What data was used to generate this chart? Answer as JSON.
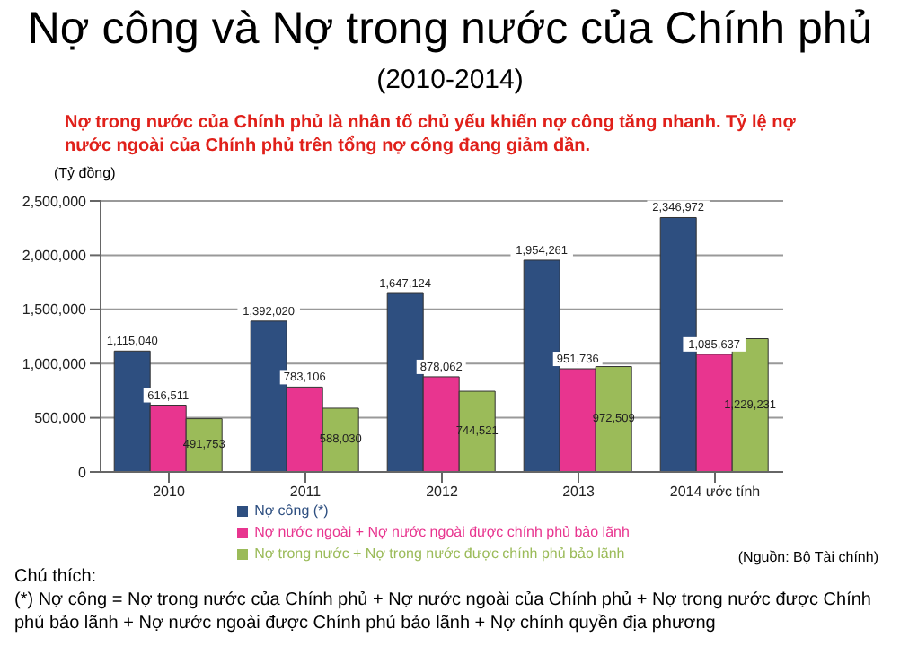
{
  "chart_data": {
    "type": "bar",
    "title": "Nợ công và Nợ trong nước của Chính phủ",
    "subtitle": "(2010-2014)",
    "ylabel": "(Tỷ đồng)",
    "categories": [
      "2010",
      "2011",
      "2012",
      "2013",
      "2014 ước tính"
    ],
    "series": [
      {
        "name": "Nợ công (*)",
        "color": "#2e4f80",
        "values": [
          1115040,
          1392020,
          1647124,
          1954261,
          2346972
        ],
        "value_labels": [
          "1,115,040",
          "1,392,020",
          "1,647,124",
          "1,954,261",
          "2,346,972"
        ]
      },
      {
        "name": "Nợ nước ngoài + Nợ nước ngoài được chính phủ bảo lãnh",
        "color": "#e8358f",
        "values": [
          616511,
          783106,
          878062,
          951736,
          1085637
        ],
        "value_labels": [
          "616,511",
          "783,106",
          "878,062",
          "951,736",
          "1,085,637"
        ]
      },
      {
        "name": "Nợ trong nước + Nợ trong nước được chính phủ bảo lãnh",
        "color": "#9bbb59",
        "values": [
          491753,
          588030,
          744521,
          972509,
          1229231
        ],
        "value_labels": [
          "491,753",
          "588,030",
          "744,521",
          "972,509",
          "1,229,231"
        ]
      }
    ],
    "ylim": [
      0,
      2500000
    ],
    "yticks": [
      0,
      {
        "value": 500000,
        "label": "500,000"
      },
      {
        "value": 1000000,
        "label": "1,000,000"
      },
      {
        "value": 1500000,
        "label": "1,500,000"
      },
      {
        "value": 2000000,
        "label": "2,000,000"
      },
      {
        "value": 2500000,
        "label": "2,500,000"
      }
    ],
    "grid": "y",
    "legend": "bottom",
    "annotations": [
      "Nợ trong nước của Chính phủ là nhân tố chủ yếu khiến nợ công tăng nhanh. Tỷ lệ nợ nước ngoài của Chính phủ trên tổng nợ công đang giảm dần.",
      "(Nguồn: Bộ Tài chính)",
      "Chú thích:",
      "(*) Nợ công = Nợ trong nước của Chính phủ + Nợ nước ngoài của Chính phủ + Nợ trong nước được Chính phủ bảo lãnh + Nợ nước ngoài được Chính phủ bảo lãnh + Nợ chính quyền địa phương"
    ]
  }
}
